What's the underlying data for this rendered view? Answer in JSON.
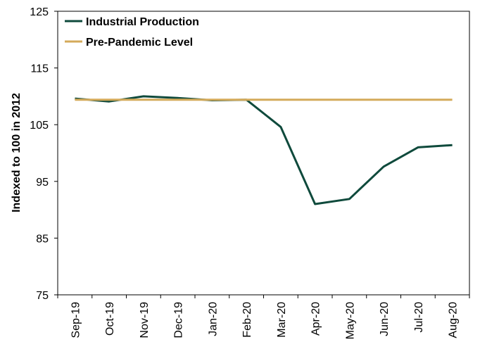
{
  "chart_data": {
    "type": "line",
    "title": "",
    "xlabel": "",
    "ylabel": "Indexed to 100 in 2012",
    "categories": [
      "Sep-19",
      "Oct-19",
      "Nov-19",
      "Dec-19",
      "Jan-20",
      "Feb-20",
      "Mar-20",
      "Apr-20",
      "May-20",
      "Jun-20",
      "Jul-20",
      "Aug-20"
    ],
    "ylim": [
      75,
      125
    ],
    "yticks": [
      75,
      85,
      95,
      105,
      115,
      125
    ],
    "grid": false,
    "legend_position": "top-left",
    "series": [
      {
        "name": "Industrial Production",
        "color": "#0f4a3c",
        "values": [
          109.6,
          109.1,
          110.0,
          109.7,
          109.3,
          109.4,
          104.6,
          91.0,
          91.9,
          97.6,
          101.0,
          101.4
        ]
      },
      {
        "name": "Pre-Pandemic Level",
        "color": "#d4aa5a",
        "values": [
          109.4,
          109.4,
          109.4,
          109.4,
          109.4,
          109.4,
          109.4,
          109.4,
          109.4,
          109.4,
          109.4,
          109.4
        ]
      }
    ]
  }
}
